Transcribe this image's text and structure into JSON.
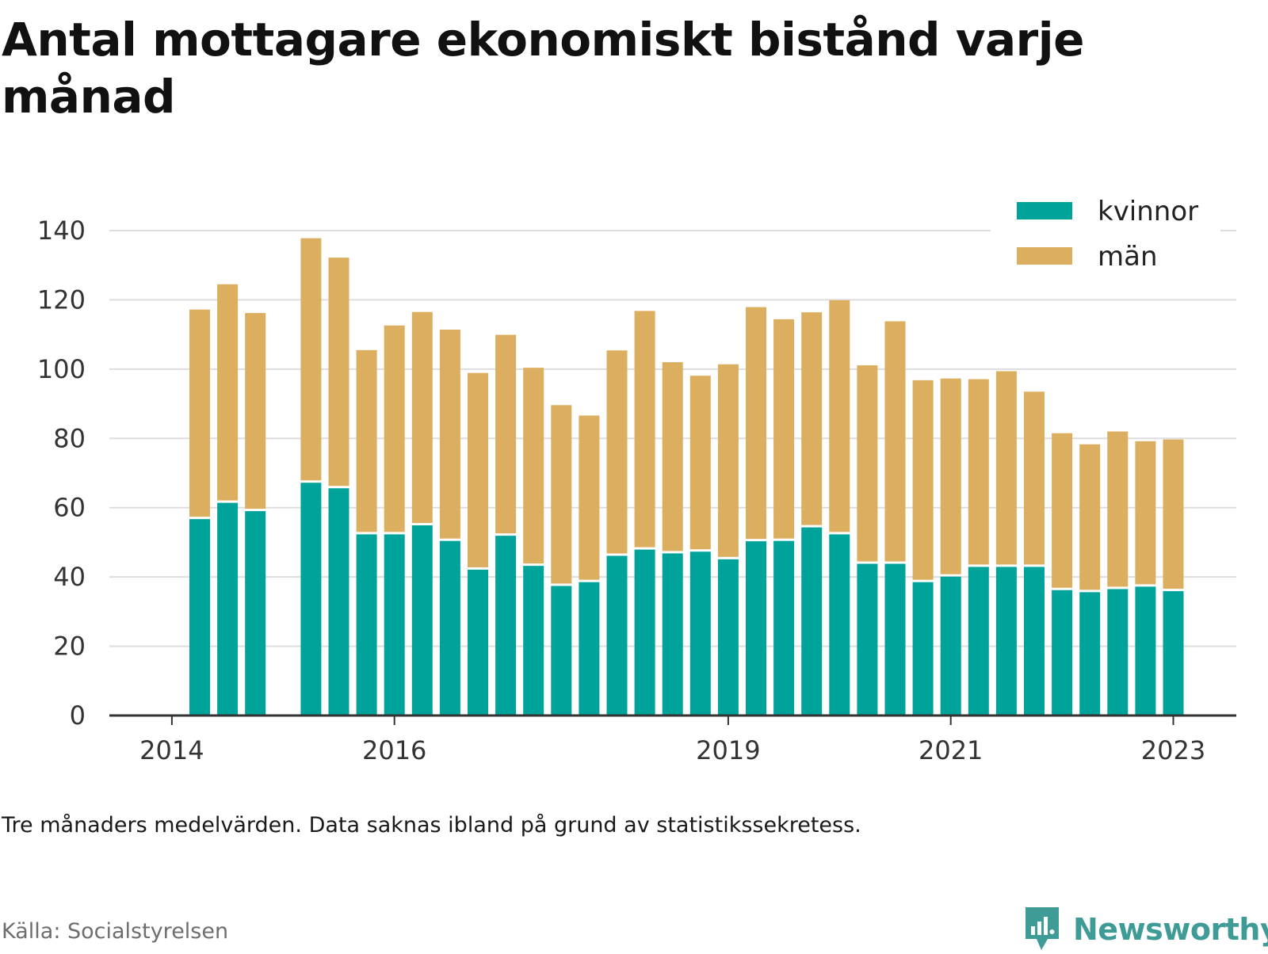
{
  "title": "Antal mottagare ekonomiskt bistånd varje månad",
  "note": "Tre månaders medelvärden. Data saknas ibland på grund av statistikssekretess.",
  "source": "Källa: Socialstyrelsen",
  "brand": {
    "name": "Newsworthy",
    "icon": "newsworthy-logo-icon",
    "color": "#3f9b95"
  },
  "colors": {
    "kvinnor": "#00a39a",
    "man": "#dcae5f",
    "grid": "#dddddd",
    "axis": "#333333"
  },
  "chart_data": {
    "type": "bar",
    "stacked": true,
    "x_ticks": [
      {
        "index": -1,
        "label": "2014"
      },
      {
        "index": 7,
        "label": "2016"
      },
      {
        "index": 19,
        "label": "2019"
      },
      {
        "index": 27,
        "label": "2021"
      },
      {
        "index": 35,
        "label": "2023"
      }
    ],
    "ylim": [
      0,
      140
    ],
    "yticks": [
      0,
      20,
      40,
      60,
      80,
      100,
      120,
      140
    ],
    "grid": true,
    "legend_position": "top-right",
    "series": [
      {
        "name": "kvinnor",
        "color": "#00a39a",
        "values": [
          56.7,
          61.4,
          59,
          null,
          67.2,
          65.6,
          52.3,
          52.3,
          54.9,
          50.4,
          42.1,
          51.9,
          43.2,
          37.4,
          38.5,
          46.1,
          47.9,
          46.8,
          47.3,
          45.1,
          50.3,
          50.4,
          54.3,
          52.3,
          43.8,
          43.8,
          38.5,
          40.1,
          42.9,
          42.9,
          42.9,
          36.2,
          35.6,
          36.5,
          37.2,
          35.9
        ]
      },
      {
        "name": "män",
        "color": "#dcae5f",
        "values": [
          60.5,
          63.1,
          57.2,
          null,
          70.6,
          66.6,
          53.2,
          60.3,
          61.6,
          61,
          56.8,
          58,
          57.2,
          52.2,
          48.1,
          59.3,
          68.9,
          55.2,
          50.8,
          56.3,
          67.6,
          64,
          62.1,
          67.6,
          57.3,
          70,
          58.3,
          57.2,
          54.2,
          56.5,
          50.6,
          45.3,
          42.7,
          45.5,
          42,
          43.8
        ]
      }
    ]
  }
}
